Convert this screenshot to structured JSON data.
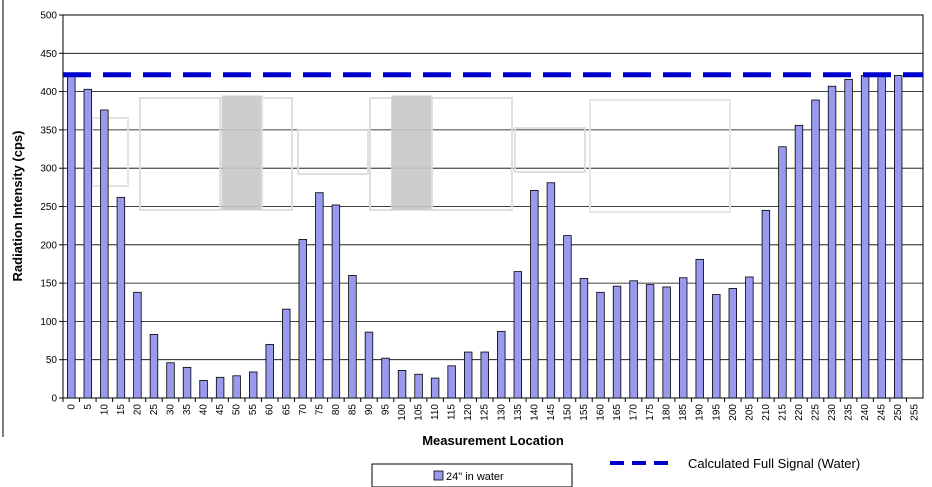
{
  "chart_data": {
    "type": "bar",
    "xlabel": "Measurement Location",
    "ylabel": "Radiation Intensity (cps)",
    "ylim": [
      0,
      500
    ],
    "yticks": [
      0,
      50,
      100,
      150,
      200,
      250,
      300,
      350,
      400,
      450,
      500
    ],
    "grid": true,
    "categories": [
      "0",
      "5",
      "10",
      "15",
      "20",
      "25",
      "30",
      "35",
      "40",
      "45",
      "50",
      "55",
      "60",
      "65",
      "70",
      "75",
      "80",
      "85",
      "90",
      "95",
      "100",
      "105",
      "110",
      "115",
      "120",
      "125",
      "130",
      "135",
      "140",
      "145",
      "150",
      "155",
      "160",
      "165",
      "170",
      "175",
      "180",
      "185",
      "190",
      "195",
      "200",
      "205",
      "210",
      "215",
      "220",
      "225",
      "230",
      "235",
      "240",
      "245",
      "250",
      "255"
    ],
    "series": [
      {
        "name": "24\" in water",
        "color": "#9999ee",
        "values": [
          420,
          403,
          376,
          262,
          138,
          83,
          46,
          40,
          23,
          27,
          29,
          34,
          70,
          116,
          207,
          268,
          252,
          160,
          86,
          52,
          36,
          31,
          26,
          42,
          60,
          60,
          87,
          165,
          271,
          281,
          212,
          156,
          138,
          146,
          153,
          148,
          145,
          157,
          181,
          135,
          143,
          158,
          245,
          328,
          356,
          389,
          407,
          416,
          421,
          421,
          421,
          null
        ]
      }
    ],
    "reference_line": {
      "name": "Calculated Full Signal (Water)",
      "value": 422,
      "color": "#0000cc"
    },
    "legend_placement": "bottom"
  },
  "legend": {
    "series_label": "24\" in water",
    "reference_label": "Calculated Full Signal (Water)"
  },
  "axis": {
    "xlabel": "Measurement Location",
    "ylabel": "Radiation Intensity (cps)"
  }
}
